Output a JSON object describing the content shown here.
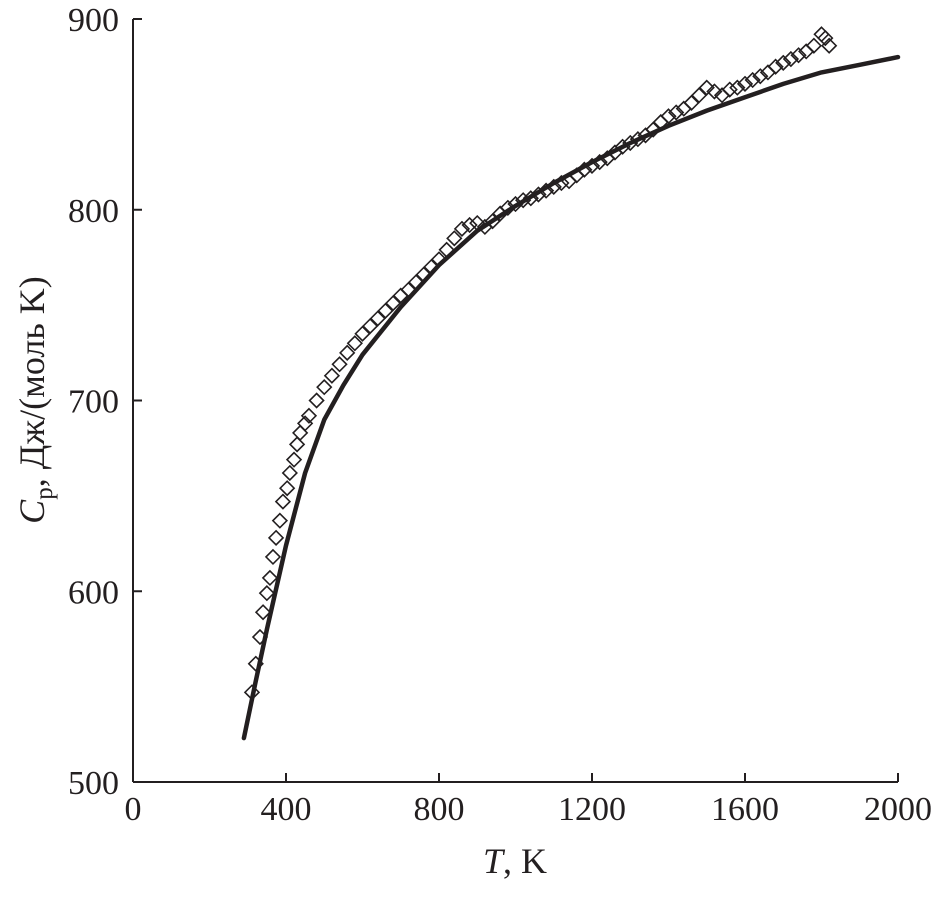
{
  "chart_data": {
    "type": "scatter",
    "title": "",
    "xlabel": {
      "symbol": "T",
      "unit": ", K"
    },
    "ylabel": {
      "symbol": "C",
      "subscript": "p",
      "unit": ", Дж/(моль K)"
    },
    "xlim": [
      0,
      2000
    ],
    "ylim": [
      500,
      900
    ],
    "xticks": [
      0,
      400,
      800,
      1200,
      1600,
      2000
    ],
    "yticks": [
      500,
      600,
      700,
      800,
      900
    ],
    "grid": false,
    "legend": "none",
    "colors": {
      "ink": "#231f20",
      "background": "#ffffff"
    },
    "series": [
      {
        "kind": "markers",
        "marker": "open-diamond",
        "x": [
          311,
          321,
          332,
          340,
          350,
          358,
          366,
          374,
          384,
          392,
          403,
          410,
          421,
          429,
          437,
          450,
          460,
          480,
          500,
          520,
          540,
          560,
          580,
          600,
          620,
          640,
          660,
          680,
          700,
          720,
          740,
          760,
          780,
          800,
          820,
          840,
          860,
          880,
          900,
          920,
          940,
          960,
          980,
          1000,
          1020,
          1040,
          1060,
          1080,
          1100,
          1120,
          1140,
          1160,
          1180,
          1200,
          1220,
          1240,
          1260,
          1280,
          1300,
          1320,
          1340,
          1360,
          1380,
          1400,
          1420,
          1440,
          1460,
          1480,
          1500,
          1520,
          1540,
          1560,
          1580,
          1600,
          1620,
          1640,
          1660,
          1680,
          1700,
          1720,
          1740,
          1760,
          1780,
          1800,
          1810,
          1820
        ],
        "y": [
          547,
          562,
          576,
          589,
          599,
          607,
          618,
          628,
          637,
          647,
          654,
          662,
          669,
          677,
          683,
          688,
          692,
          700,
          707,
          713,
          719,
          725,
          730,
          735,
          739,
          743,
          747,
          751,
          755,
          758,
          762,
          766,
          770,
          774,
          779,
          785,
          790,
          792,
          793,
          791,
          794,
          798,
          801,
          803,
          805,
          806,
          808,
          810,
          812,
          814,
          815,
          818,
          821,
          823,
          825,
          827,
          830,
          833,
          835,
          837,
          839,
          842,
          846,
          849,
          851,
          853,
          856,
          860,
          864,
          862,
          860,
          863,
          864,
          866,
          868,
          870,
          872,
          875,
          877,
          879,
          881,
          883,
          886,
          892,
          890,
          886
        ]
      },
      {
        "kind": "line",
        "x": [
          290,
          320,
          350,
          400,
          450,
          500,
          550,
          600,
          700,
          800,
          900,
          1000,
          1100,
          1200,
          1300,
          1400,
          1500,
          1600,
          1700,
          1800,
          1900,
          2000
        ],
        "y": [
          523,
          552,
          580,
          624,
          662,
          690,
          708,
          724,
          749,
          771,
          789,
          802,
          814,
          825,
          835,
          844,
          852,
          859,
          866,
          872,
          876,
          880
        ]
      }
    ]
  }
}
